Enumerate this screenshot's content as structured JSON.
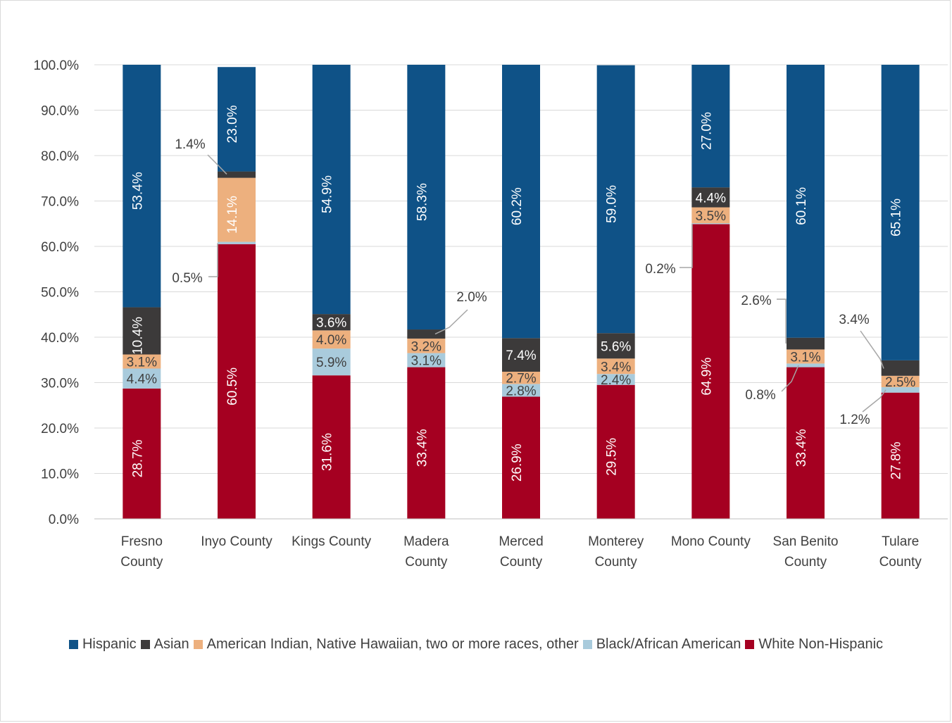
{
  "chart_data": {
    "type": "bar",
    "stacked": true,
    "categories": [
      "Fresno County",
      "Inyo County",
      "Kings County",
      "Madera County",
      "Merced County",
      "Monterey County",
      "Mono County",
      "San Benito County",
      "Tulare County"
    ],
    "ylim": [
      0,
      100
    ],
    "yticks": [
      "0.0%",
      "10.0%",
      "20.0%",
      "30.0%",
      "40.0%",
      "50.0%",
      "60.0%",
      "70.0%",
      "80.0%",
      "90.0%",
      "100.0%"
    ],
    "grid": true,
    "legend_position": "bottom",
    "series": [
      {
        "name": "White Non-Hispanic",
        "color": "#A50021",
        "values": [
          28.7,
          60.5,
          31.6,
          33.4,
          26.9,
          29.5,
          64.9,
          33.4,
          27.8
        ],
        "labels": [
          "28.7%",
          "60.5%",
          "31.6%",
          "33.4%",
          "26.9%",
          "29.5%",
          "64.9%",
          "33.4%",
          "27.8%"
        ]
      },
      {
        "name": "Black/African American",
        "color": "#A9CBDC",
        "values": [
          4.4,
          0.5,
          5.9,
          3.1,
          2.8,
          2.4,
          0.2,
          0.8,
          1.2
        ],
        "labels": [
          "4.4%",
          "0.5%",
          "5.9%",
          "3.1%",
          "2.8%",
          "2.4%",
          "0.2%",
          "0.8%",
          "1.2%"
        ]
      },
      {
        "name": "American Indian, Native Hawaiian, two or more races, other",
        "color": "#EDB07E",
        "values": [
          3.1,
          14.1,
          4.0,
          3.2,
          2.7,
          3.4,
          3.5,
          3.1,
          2.5
        ],
        "labels": [
          "3.1%",
          "14.1%",
          "4.0%",
          "3.2%",
          "2.7%",
          "3.4%",
          "3.5%",
          "3.1%",
          "2.5%"
        ]
      },
      {
        "name": "Asian",
        "color": "#3C3A3A",
        "values": [
          10.4,
          1.4,
          3.6,
          2.0,
          7.4,
          5.6,
          4.4,
          2.6,
          3.4
        ],
        "labels": [
          "10.4%",
          "1.4%",
          "3.6%",
          "2.0%",
          "7.4%",
          "5.6%",
          "4.4%",
          "2.6%",
          "3.4%"
        ]
      },
      {
        "name": "Hispanic",
        "color": "#0F5287",
        "values": [
          53.4,
          23.0,
          54.9,
          58.3,
          60.2,
          59.0,
          27.0,
          60.1,
          65.1
        ],
        "labels": [
          "53.4%",
          "23.0%",
          "54.9%",
          "58.3%",
          "60.2%",
          "59.0%",
          "27.0%",
          "60.1%",
          "65.1%"
        ]
      }
    ],
    "legend_order": [
      "Hispanic",
      "Asian",
      "American Indian, Native Hawaiian, two or more races, other",
      "Black/African American",
      "White Non-Hispanic"
    ]
  }
}
